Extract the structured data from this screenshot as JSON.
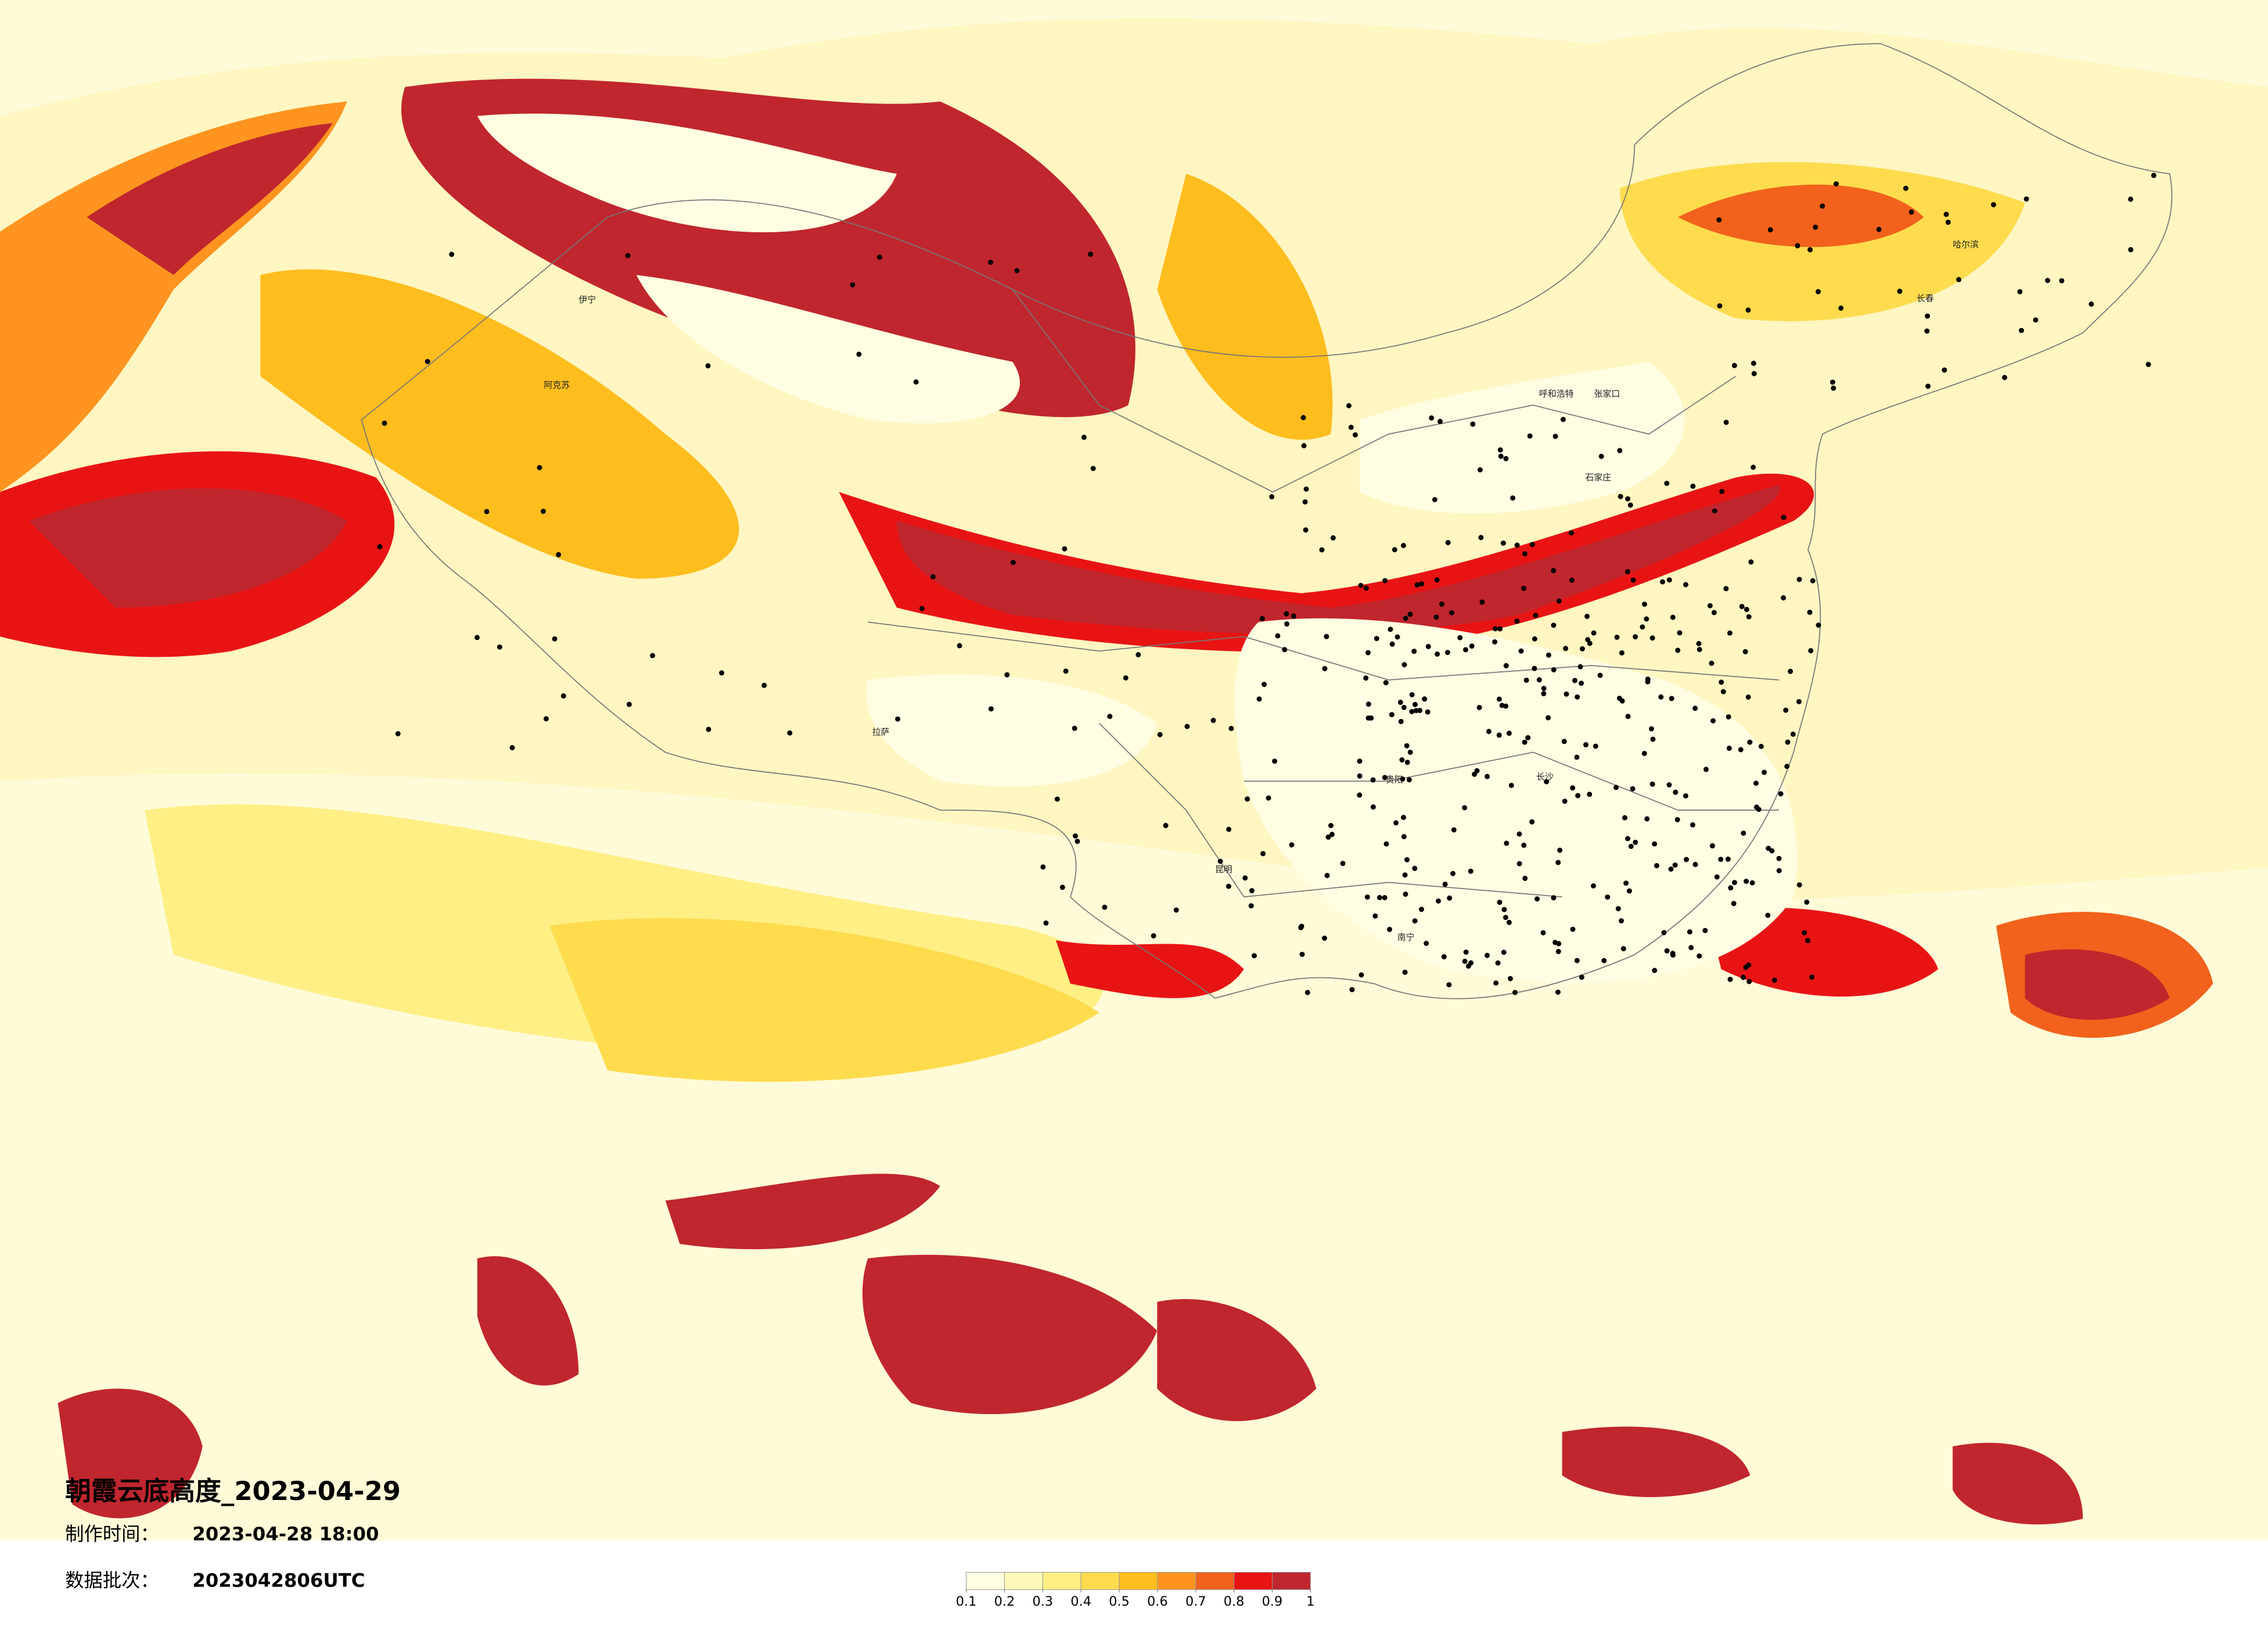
{
  "header": {
    "title": "朝霞云底高度_2023-04-29",
    "info": [
      {
        "label": "制作时间：",
        "value": "2023-04-28 18:00"
      },
      {
        "label": "数据批次：",
        "value": "2023042806UTC"
      }
    ]
  },
  "colorbar": {
    "ticks": [
      0.1,
      0.2,
      0.3,
      0.4,
      0.5,
      0.6,
      0.7,
      0.8,
      0.9,
      1
    ],
    "colors": [
      "#fffde2",
      "#fff9b8",
      "#ffef85",
      "#ffdc4e",
      "#ffbd1e",
      "#ff9420",
      "#f2621c",
      "#e81414",
      "#c0262d"
    ]
  },
  "cities": [
    "伊宁",
    "阿克苏",
    "呼和浩特",
    "张家口",
    "石家庄",
    "哈尔滨",
    "长春",
    "拉萨",
    "昆明",
    "贵阳",
    "长沙",
    "南宁"
  ]
}
